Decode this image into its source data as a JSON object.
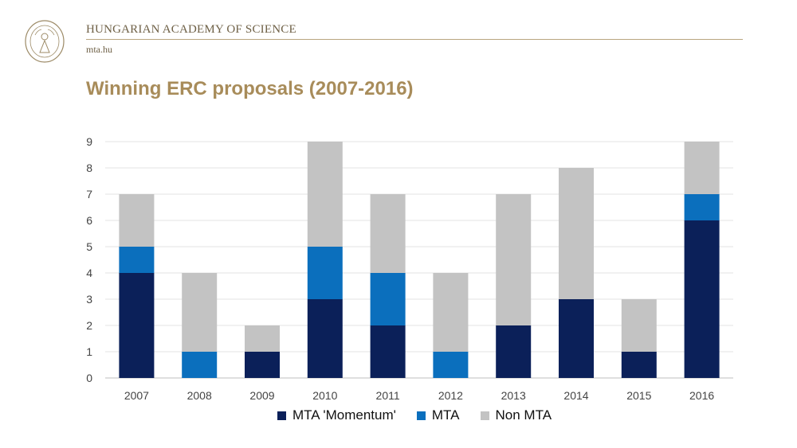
{
  "header": {
    "org_name": "HUNGARIAN ACADEMY OF SCIENCE",
    "org_url": "mta.hu",
    "logo_icon": "academy-seal-icon"
  },
  "slide": {
    "title": "Winning ERC proposals (2007-2016)"
  },
  "chart_data": {
    "type": "bar",
    "stacked": true,
    "title": "",
    "xlabel": "",
    "ylabel": "",
    "categories": [
      "2007",
      "2008",
      "2009",
      "2010",
      "2011",
      "2012",
      "2013",
      "2014",
      "2015",
      "2016"
    ],
    "series": [
      {
        "name": "MTA 'Momentum'",
        "color": "#0b2059",
        "values": [
          4,
          0,
          1,
          3,
          2,
          0,
          2,
          3,
          1,
          6
        ]
      },
      {
        "name": "MTA",
        "color": "#0b6fbd",
        "values": [
          1,
          1,
          0,
          2,
          2,
          1,
          0,
          0,
          0,
          1
        ]
      },
      {
        "name": "Non MTA",
        "color": "#c3c3c3",
        "values": [
          2,
          3,
          1,
          4,
          3,
          3,
          5,
          5,
          2,
          2
        ]
      }
    ],
    "ylim": [
      0,
      9
    ],
    "yticks": [
      0,
      1,
      2,
      3,
      4,
      5,
      6,
      7,
      8,
      9
    ],
    "grid": true,
    "legend_position": "bottom"
  }
}
